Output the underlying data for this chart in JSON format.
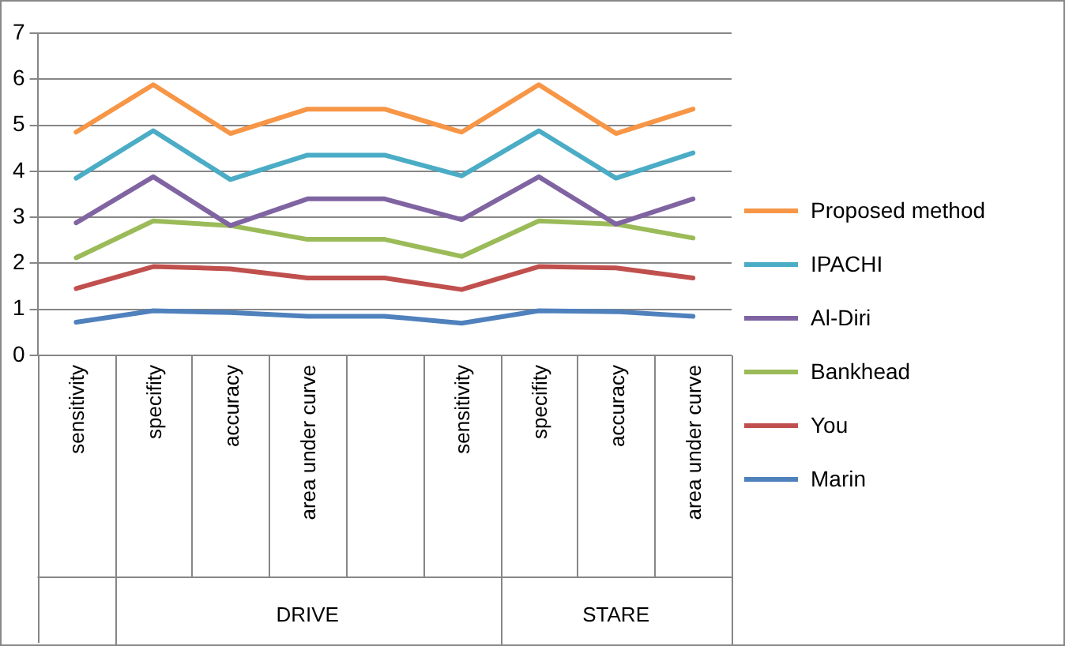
{
  "chart_data": {
    "type": "line",
    "categories": [
      "sensitivity",
      "specifity",
      "accuracy",
      "area under curve",
      null,
      "sensitivity",
      "specifity",
      "accuracy",
      "area under curve"
    ],
    "series": [
      {
        "name": "Proposed method",
        "color": "#f79646",
        "values": [
          4.85,
          5.88,
          4.82,
          5.35,
          5.35,
          4.85,
          5.88,
          4.82,
          5.35
        ]
      },
      {
        "name": "IPACHI",
        "color": "#4bacc6",
        "values": [
          3.85,
          4.88,
          3.82,
          4.35,
          4.35,
          3.9,
          4.88,
          3.85,
          4.4
        ]
      },
      {
        "name": "Al-Diri",
        "color": "#8064a2",
        "values": [
          2.88,
          3.88,
          2.82,
          3.4,
          3.4,
          2.95,
          3.88,
          2.85,
          3.4
        ]
      },
      {
        "name": "Bankhead",
        "color": "#9bbb59",
        "values": [
          2.12,
          2.92,
          2.82,
          2.52,
          2.52,
          2.15,
          2.92,
          2.85,
          2.55
        ]
      },
      {
        "name": "You",
        "color": "#c0504d",
        "values": [
          1.45,
          1.93,
          1.88,
          1.68,
          1.68,
          1.43,
          1.93,
          1.9,
          1.68
        ]
      },
      {
        "name": "Marin",
        "color": "#4f81bd",
        "values": [
          0.72,
          0.97,
          0.93,
          0.85,
          0.85,
          0.7,
          0.97,
          0.95,
          0.85
        ]
      }
    ],
    "ylim": [
      0,
      7
    ],
    "yticks": [
      0,
      1,
      2,
      3,
      4,
      5,
      6,
      7
    ],
    "grid": "y",
    "legend": "right",
    "marker": "none",
    "line_style": "solid",
    "annotations": [
      "DRIVE",
      "STARE"
    ]
  }
}
